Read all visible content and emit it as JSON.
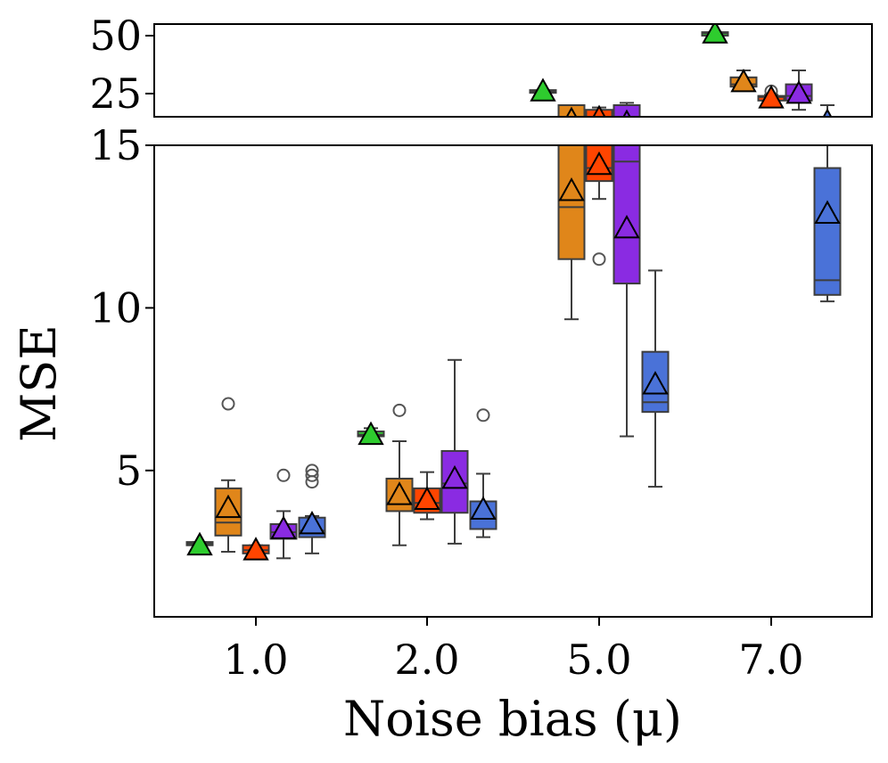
{
  "chart_data": {
    "type": "box",
    "xlabel": "Noise bias (μ)",
    "ylabel": "MSE",
    "categories": [
      "1.0",
      "2.0",
      "5.0",
      "7.0"
    ],
    "y_ticks_main": [
      "5",
      "10",
      "15"
    ],
    "y_ticks_top": [
      "25",
      "50"
    ],
    "ylim_main": [
      0.5,
      15
    ],
    "ylim_top": [
      15,
      55
    ],
    "series": [
      {
        "name": "green",
        "color": "#2ecc2e",
        "boxes": [
          {
            "category": "1.0",
            "q1": 2.7,
            "median": 2.75,
            "q3": 2.8,
            "whisker_low": 2.7,
            "whisker_high": 2.8,
            "mean": 2.7,
            "outliers": []
          },
          {
            "category": "2.0",
            "q1": 6.05,
            "median": 6.1,
            "q3": 6.2,
            "whisker_low": 6.0,
            "whisker_high": 6.3,
            "mean": 6.1,
            "outliers": []
          },
          {
            "category": "5.0",
            "q1": 25.5,
            "median": 26,
            "q3": 26.5,
            "whisker_low": 25.5,
            "whisker_high": 26.5,
            "mean": 26,
            "outliers": []
          },
          {
            "category": "7.0",
            "q1": 50,
            "median": 51,
            "q3": 51.5,
            "whisker_low": 50,
            "whisker_high": 51.5,
            "mean": 51,
            "outliers": []
          }
        ]
      },
      {
        "name": "orange",
        "color": "#e0861a",
        "boxes": [
          {
            "category": "1.0",
            "q1": 3.0,
            "median": 3.4,
            "q3": 4.45,
            "whisker_low": 2.5,
            "whisker_high": 4.7,
            "mean": 3.85,
            "outliers": [
              7.05
            ]
          },
          {
            "category": "2.0",
            "q1": 3.75,
            "median": 4.0,
            "q3": 4.75,
            "whisker_low": 2.7,
            "whisker_high": 5.9,
            "mean": 4.25,
            "outliers": [
              6.85
            ]
          },
          {
            "category": "5.0",
            "q1": 11.5,
            "median": 13.1,
            "q3": 20,
            "whisker_low": 9.65,
            "whisker_high": 20,
            "mean": 13.6,
            "outliers": []
          },
          {
            "category": "7.0",
            "q1": 28,
            "median": 29,
            "q3": 32,
            "whisker_low": 27,
            "whisker_high": 35,
            "mean": 30,
            "outliers": []
          }
        ]
      },
      {
        "name": "red",
        "color": "#ff4500",
        "boxes": [
          {
            "category": "1.0",
            "q1": 2.45,
            "median": 2.55,
            "q3": 2.7,
            "whisker_low": 2.45,
            "whisker_high": 2.7,
            "mean": 2.55,
            "outliers": []
          },
          {
            "category": "2.0",
            "q1": 3.7,
            "median": 4.0,
            "q3": 4.45,
            "whisker_low": 3.5,
            "whisker_high": 4.95,
            "mean": 4.1,
            "outliers": []
          },
          {
            "category": "5.0",
            "q1": 13.9,
            "median": 14.3,
            "q3": 18,
            "whisker_low": 13.35,
            "whisker_high": 19,
            "mean": 14.4,
            "outliers": [
              11.5
            ]
          },
          {
            "category": "7.0",
            "q1": 22,
            "median": 23.5,
            "q3": 24,
            "whisker_low": 21,
            "whisker_high": 24.5,
            "mean": 23,
            "outliers": [
              26
            ]
          }
        ]
      },
      {
        "name": "purple",
        "color": "#8a2be2",
        "boxes": [
          {
            "category": "1.0",
            "q1": 2.9,
            "median": 3.1,
            "q3": 3.35,
            "whisker_low": 2.3,
            "whisker_high": 3.75,
            "mean": 3.2,
            "outliers": [
              4.85
            ]
          },
          {
            "category": "2.0",
            "q1": 3.7,
            "median": 4.6,
            "q3": 5.6,
            "whisker_low": 2.75,
            "whisker_high": 8.4,
            "mean": 4.75,
            "outliers": []
          },
          {
            "category": "5.0",
            "q1": 10.75,
            "median": 14.5,
            "q3": 20,
            "whisker_low": 6.05,
            "whisker_high": 21,
            "mean": 12.45,
            "outliers": []
          },
          {
            "category": "7.0",
            "q1": 22,
            "median": 24,
            "q3": 29,
            "whisker_low": 18,
            "whisker_high": 35,
            "mean": 25,
            "outliers": []
          }
        ]
      },
      {
        "name": "blue",
        "color": "#4a72d8",
        "boxes": [
          {
            "category": "1.0",
            "q1": 2.95,
            "median": 3.15,
            "q3": 3.55,
            "whisker_low": 2.45,
            "whisker_high": 3.6,
            "mean": 3.35,
            "outliers": [
              4.65,
              4.85,
              5.0
            ]
          },
          {
            "category": "2.0",
            "q1": 3.2,
            "median": 3.55,
            "q3": 4.05,
            "whisker_low": 2.95,
            "whisker_high": 4.9,
            "mean": 3.8,
            "outliers": [
              6.7
            ]
          },
          {
            "category": "5.0",
            "q1": 6.8,
            "median": 7.1,
            "q3": 8.65,
            "whisker_low": 4.5,
            "whisker_high": 11.15,
            "mean": 7.65,
            "outliers": []
          },
          {
            "category": "7.0",
            "q1": 10.4,
            "median": 10.85,
            "q3": 14.3,
            "whisker_low": 10.2,
            "whisker_high": 20,
            "mean": 12.9,
            "outliers": []
          }
        ]
      }
    ]
  }
}
